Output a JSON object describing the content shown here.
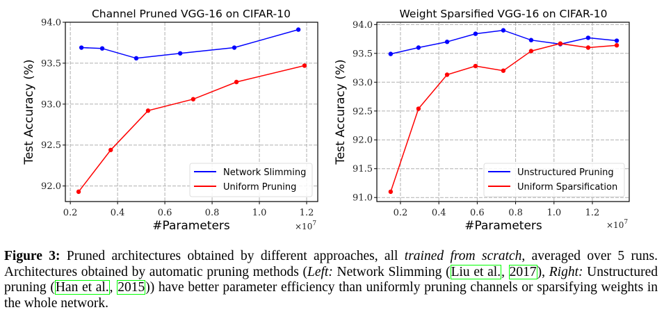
{
  "chart_data": [
    {
      "type": "line",
      "title": "Channel Pruned VGG-16 on CIFAR-10",
      "xlabel": "#Parameters",
      "ylabel": "Test Accuracy (%)",
      "x_multiplier": "×10^7",
      "xlim": [
        0.179,
        1.247
      ],
      "ylim": [
        91.81,
        94.0
      ],
      "xticks": [
        0.2,
        0.4,
        0.6,
        0.8,
        1.0,
        1.2
      ],
      "xtick_labels": [
        "0.2",
        "0.4",
        "0.6",
        "0.8",
        "1.0",
        "1.2"
      ],
      "yticks": [
        92.0,
        92.5,
        93.0,
        93.5,
        94.0
      ],
      "ytick_labels": [
        "92.0",
        "92.5",
        "93.0",
        "93.5",
        "94.0"
      ],
      "grid": true,
      "legend_position": "bottom-right",
      "series": [
        {
          "name": "Network Slimming",
          "color": "#0000ff",
          "x": [
            0.247,
            0.335,
            0.479,
            0.665,
            0.894,
            1.165
          ],
          "y": [
            93.69,
            93.68,
            93.56,
            93.62,
            93.69,
            93.91
          ]
        },
        {
          "name": "Uniform Pruning",
          "color": "#ff0000",
          "x": [
            0.235,
            0.371,
            0.529,
            0.72,
            0.903,
            1.191
          ],
          "y": [
            91.93,
            92.44,
            92.92,
            93.06,
            93.27,
            93.47
          ]
        }
      ]
    },
    {
      "type": "line",
      "title": "Weight Sparsified VGG-16 on CIFAR-10",
      "xlabel": "#Parameters",
      "ylabel": "Test Accuracy (%)",
      "x_multiplier": "×10^7",
      "xlim": [
        0.077,
        1.392
      ],
      "ylim": [
        90.93,
        94.04
      ],
      "xticks": [
        0.2,
        0.4,
        0.6,
        0.8,
        1.0,
        1.2
      ],
      "xtick_labels": [
        "0.2",
        "0.4",
        "0.6",
        "0.8",
        "1.0",
        "1.2"
      ],
      "yticks": [
        91.0,
        91.5,
        92.0,
        92.5,
        93.0,
        93.5,
        94.0
      ],
      "ytick_labels": [
        "91.0",
        "91.5",
        "92.0",
        "92.5",
        "93.0",
        "93.5",
        "94.0"
      ],
      "grid": true,
      "legend_position": "bottom-right",
      "series": [
        {
          "name": "Unstructured Pruning",
          "color": "#0000ff",
          "x": [
            0.149,
            0.294,
            0.443,
            0.591,
            0.736,
            0.881,
            1.033,
            1.178,
            1.327
          ],
          "y": [
            93.49,
            93.6,
            93.7,
            93.84,
            93.9,
            93.73,
            93.66,
            93.77,
            93.72
          ]
        },
        {
          "name": "Uniform Sparsification",
          "color": "#ff0000",
          "x": [
            0.149,
            0.294,
            0.443,
            0.591,
            0.736,
            0.881,
            1.033,
            1.178,
            1.327
          ],
          "y": [
            91.1,
            92.54,
            93.13,
            93.28,
            93.2,
            93.54,
            93.67,
            93.6,
            93.64
          ]
        }
      ]
    }
  ],
  "caption": {
    "label": "Figure 3:",
    "t1": " Pruned architectures obtained by different approaches, all ",
    "italic1": "trained from scratch",
    "t2": ", averaged over 5 runs. Architectures obtained by automatic pruning methods (",
    "italic2": "Left:",
    "t3": " Network Slimming (",
    "cite1_authors": "Liu et al.",
    "cite1_sep": ", ",
    "cite1_year": "2017",
    "t4": "), ",
    "italic3": "Right:",
    "t5": " Unstructured pruning (",
    "cite2_authors": "Han et al.",
    "cite2_sep": ", ",
    "cite2_year": "2015",
    "t6": ")) have better parameter efficiency than uniformly pruning channels or sparsifying weights in the whole network."
  }
}
